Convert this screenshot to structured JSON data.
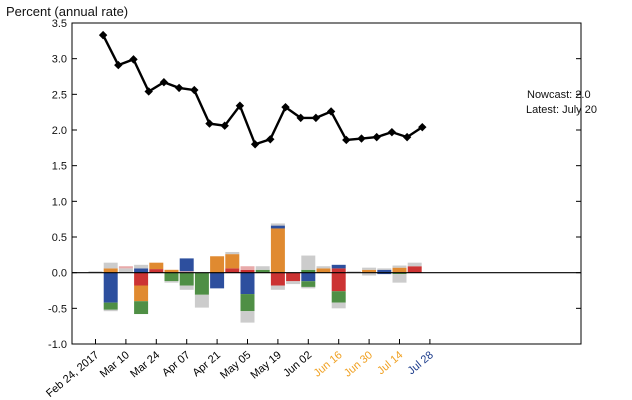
{
  "chart_data": {
    "type": "bar",
    "ylabel": "Percent (annual rate)",
    "ylim": [
      -1.0,
      3.5
    ],
    "yticks": [
      "-1.0",
      "-0.5",
      "0.0",
      "0.5",
      "1.0",
      "1.5",
      "2.0",
      "2.5",
      "3.0",
      "3.5"
    ],
    "xtick_labels": [
      {
        "label": "Feb 24, 2017",
        "color": "#000000"
      },
      {
        "label": "Mar 10",
        "color": "#000000"
      },
      {
        "label": "Mar 24",
        "color": "#000000"
      },
      {
        "label": "Apr 07",
        "color": "#000000"
      },
      {
        "label": "Apr 21",
        "color": "#000000"
      },
      {
        "label": "May 05",
        "color": "#000000"
      },
      {
        "label": "May 19",
        "color": "#000000"
      },
      {
        "label": "Jun 02",
        "color": "#000000"
      },
      {
        "label": "Jun 16",
        "color": "#f0a020"
      },
      {
        "label": "Jun 30",
        "color": "#f0a020"
      },
      {
        "label": "Jul 14",
        "color": "#f0a020"
      },
      {
        "label": "Jul 28",
        "color": "#1a3a8a"
      }
    ],
    "grid": false,
    "colors": {
      "blue": "#2d4f9e",
      "orange": "#e08a30",
      "green": "#4f8f45",
      "red": "#cc3333",
      "gray": "#cccccc",
      "pink": "#e8aaaa",
      "line": "#000000"
    },
    "nowcast": {
      "name": "Nowcast",
      "x": [
        "Feb 24, 2017",
        "Mar 03",
        "Mar 10",
        "Mar 17",
        "Mar 24",
        "Mar 31",
        "Apr 07",
        "Apr 14",
        "Apr 21",
        "Apr 28",
        "May 05",
        "May 12",
        "May 19",
        "May 26",
        "Jun 02",
        "Jun 09",
        "Jun 16",
        "Jun 23",
        "Jun 30",
        "Jul 07",
        "Jul 14",
        "Jul 20"
      ],
      "values": [
        3.33,
        2.91,
        2.99,
        2.54,
        2.67,
        2.59,
        2.56,
        2.09,
        2.06,
        2.34,
        1.8,
        1.87,
        2.32,
        2.17,
        2.17,
        2.26,
        1.86,
        1.88,
        1.9,
        1.97,
        1.9,
        2.04
      ]
    },
    "contributions": [
      [
        {
          "c": "gray",
          "v": 0.02
        }
      ],
      [
        {
          "c": "orange",
          "v": 0.06
        },
        {
          "c": "gray",
          "v": 0.08
        },
        {
          "c": "blue",
          "v": -0.42
        },
        {
          "c": "green",
          "v": -0.1
        },
        {
          "c": "gray",
          "v": -0.02
        }
      ],
      [
        {
          "c": "gray",
          "v": 0.06
        },
        {
          "c": "pink",
          "v": 0.03
        }
      ],
      [
        {
          "c": "blue",
          "v": 0.06
        },
        {
          "c": "gray",
          "v": 0.05
        },
        {
          "c": "red",
          "v": -0.18
        },
        {
          "c": "orange",
          "v": -0.22
        },
        {
          "c": "green",
          "v": -0.18
        }
      ],
      [
        {
          "c": "red",
          "v": 0.05
        },
        {
          "c": "orange",
          "v": 0.09
        }
      ],
      [
        {
          "c": "orange",
          "v": 0.04
        },
        {
          "c": "green",
          "v": -0.12
        },
        {
          "c": "gray",
          "v": -0.02
        }
      ],
      [
        {
          "c": "pink",
          "v": 0.02
        },
        {
          "c": "blue",
          "v": 0.18
        },
        {
          "c": "green",
          "v": -0.18
        },
        {
          "c": "gray",
          "v": -0.06
        }
      ],
      [
        {
          "c": "green",
          "v": -0.31
        },
        {
          "c": "gray",
          "v": -0.18
        }
      ],
      [
        {
          "c": "orange",
          "v": 0.23
        },
        {
          "c": "blue",
          "v": -0.22
        }
      ],
      [
        {
          "c": "red",
          "v": 0.06
        },
        {
          "c": "orange",
          "v": 0.2
        },
        {
          "c": "gray",
          "v": 0.03
        }
      ],
      [
        {
          "c": "red",
          "v": 0.04
        },
        {
          "c": "pink",
          "v": 0.05
        },
        {
          "c": "blue",
          "v": -0.3
        },
        {
          "c": "green",
          "v": -0.24
        },
        {
          "c": "gray",
          "v": -0.16
        }
      ],
      [
        {
          "c": "green",
          "v": 0.04
        },
        {
          "c": "gray",
          "v": 0.05
        }
      ],
      [
        {
          "c": "orange",
          "v": 0.62
        },
        {
          "c": "blue",
          "v": 0.04
        },
        {
          "c": "gray",
          "v": 0.03
        },
        {
          "c": "red",
          "v": -0.18
        },
        {
          "c": "gray",
          "v": -0.06
        }
      ],
      [
        {
          "c": "red",
          "v": -0.12
        },
        {
          "c": "gray",
          "v": -0.04
        }
      ],
      [
        {
          "c": "green",
          "v": 0.04
        },
        {
          "c": "gray",
          "v": 0.2
        },
        {
          "c": "blue",
          "v": -0.12
        },
        {
          "c": "green",
          "v": -0.08
        },
        {
          "c": "gray",
          "v": -0.02
        }
      ],
      [
        {
          "c": "orange",
          "v": 0.06
        },
        {
          "c": "gray",
          "v": 0.03
        }
      ],
      [
        {
          "c": "red",
          "v": 0.06
        },
        {
          "c": "blue",
          "v": 0.05
        },
        {
          "c": "red",
          "v": -0.26
        },
        {
          "c": "green",
          "v": -0.16
        },
        {
          "c": "gray",
          "v": -0.08
        }
      ],
      [
        {
          "c": "gray",
          "v": 0.02
        }
      ],
      [
        {
          "c": "orange",
          "v": 0.04
        },
        {
          "c": "gray",
          "v": 0.03
        },
        {
          "c": "gray",
          "v": -0.04
        }
      ],
      [
        {
          "c": "blue",
          "v": 0.04
        },
        {
          "c": "gray",
          "v": 0.02
        },
        {
          "c": "blue",
          "v": -0.02
        }
      ],
      [
        {
          "c": "orange",
          "v": 0.07
        },
        {
          "c": "gray",
          "v": 0.03
        },
        {
          "c": "green",
          "v": -0.02
        },
        {
          "c": "gray",
          "v": -0.12
        }
      ],
      [
        {
          "c": "red",
          "v": 0.09
        },
        {
          "c": "gray",
          "v": 0.05
        }
      ]
    ],
    "annotations": {
      "nowcast": "Nowcast:  2.0",
      "latest": "Latest: July 20"
    }
  }
}
